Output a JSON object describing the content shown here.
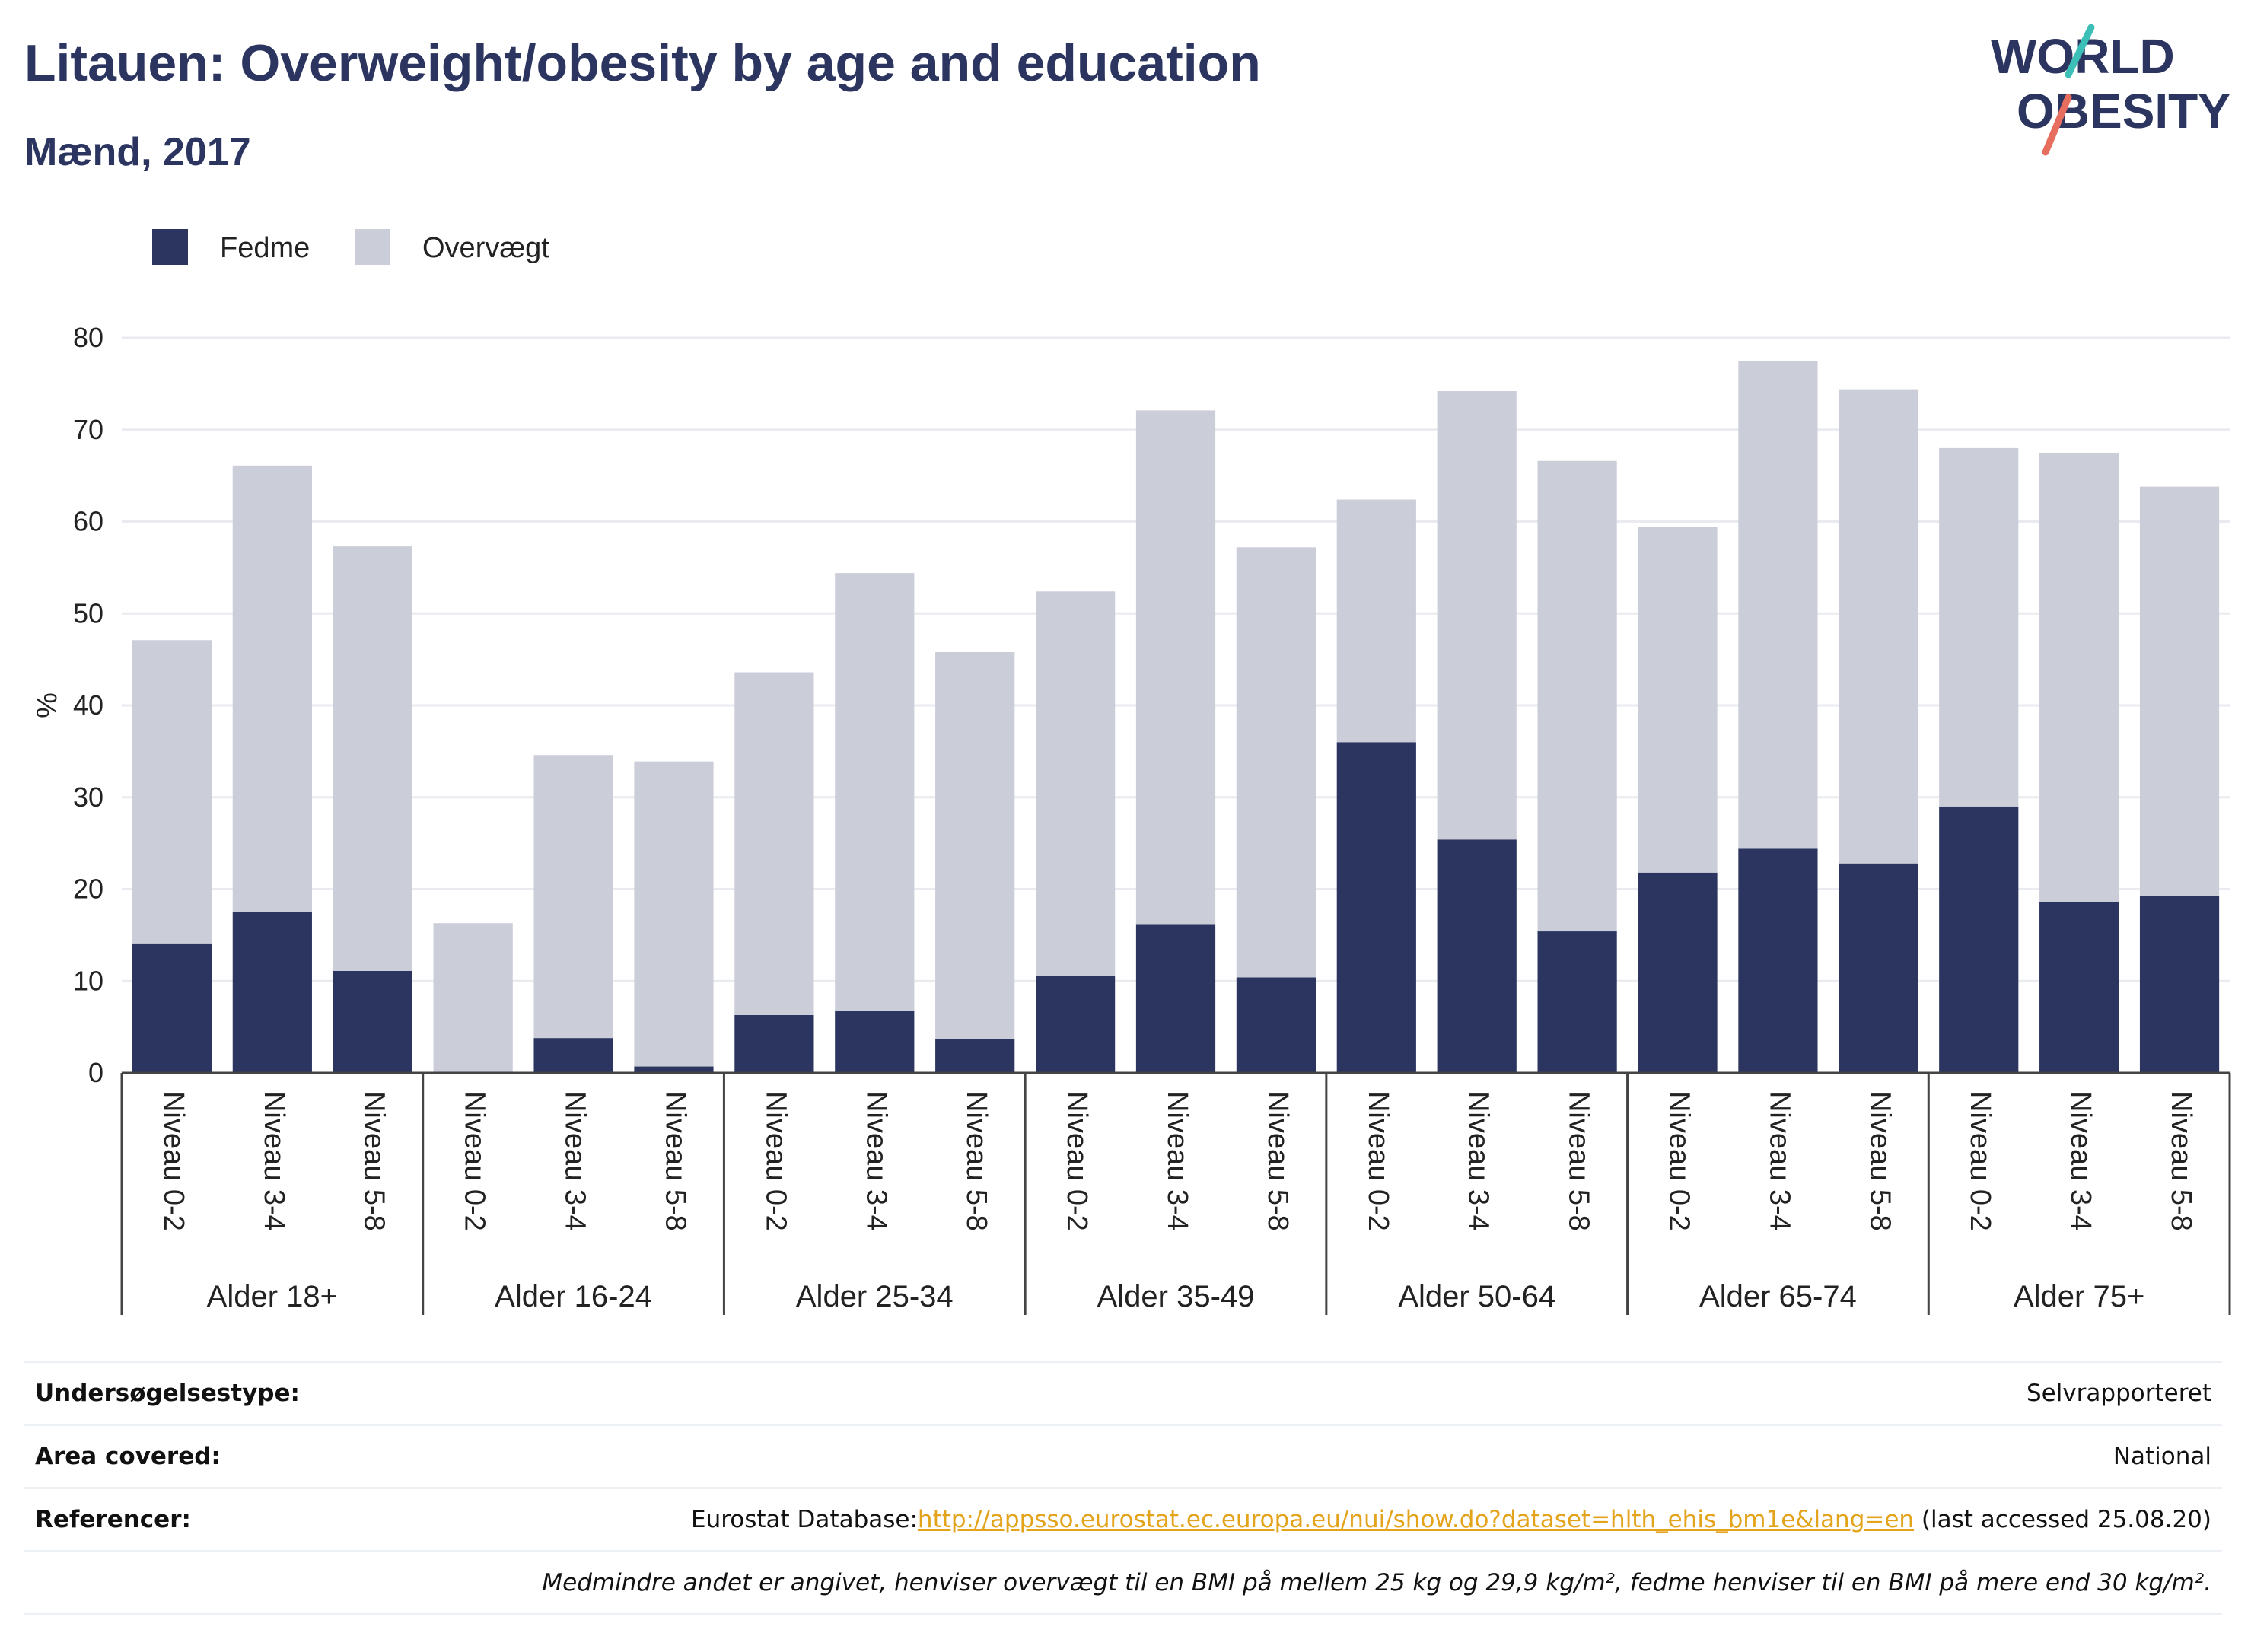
{
  "title": "Litauen: Overweight/obesity by age and education",
  "subtitle": "Mænd, 2017",
  "logo": {
    "line1": "WORLD",
    "line2": "OBESITY"
  },
  "colors": {
    "fedme": "#2b3560",
    "overvaegt": "#cbcdd9",
    "link": "#e3a31b",
    "logo_teal": "#3cbfb7",
    "logo_coral": "#e76e5e"
  },
  "chart_data": {
    "type": "bar",
    "stacked": true,
    "title": "Litauen: Overweight/obesity by age and education",
    "subtitle": "Mænd, 2017",
    "ylabel": "%",
    "ylim": [
      0,
      80
    ],
    "yticks": [
      0,
      10,
      20,
      30,
      40,
      50,
      60,
      70,
      80
    ],
    "grid": true,
    "legend_position": "top-left",
    "groups": [
      {
        "label": "Alder 18+",
        "categories": [
          "Niveau 0-2",
          "Niveau 3-4",
          "Niveau 5-8"
        ]
      },
      {
        "label": "Alder 16-24",
        "categories": [
          "Niveau 0-2",
          "Niveau 3-4",
          "Niveau 5-8"
        ]
      },
      {
        "label": "Alder 25-34",
        "categories": [
          "Niveau 0-2",
          "Niveau 3-4",
          "Niveau 5-8"
        ]
      },
      {
        "label": "Alder 35-49",
        "categories": [
          "Niveau 0-2",
          "Niveau 3-4",
          "Niveau 5-8"
        ]
      },
      {
        "label": "Alder 50-64",
        "categories": [
          "Niveau 0-2",
          "Niveau 3-4",
          "Niveau 5-8"
        ]
      },
      {
        "label": "Alder 65-74",
        "categories": [
          "Niveau 0-2",
          "Niveau 3-4",
          "Niveau 5-8"
        ]
      },
      {
        "label": "Alder 75+",
        "categories": [
          "Niveau 0-2",
          "Niveau 3-4",
          "Niveau 5-8"
        ]
      }
    ],
    "series": [
      {
        "name": "Fedme",
        "color": "#2b3560",
        "values": [
          14.1,
          17.5,
          11.1,
          0.0,
          3.8,
          0.7,
          6.3,
          6.8,
          3.7,
          10.6,
          16.2,
          10.4,
          36.0,
          25.4,
          15.4,
          21.8,
          24.4,
          22.8,
          29.0,
          18.6,
          19.3
        ]
      },
      {
        "name": "Overvægt",
        "color": "#cbcdd9",
        "values": [
          33.0,
          48.6,
          46.2,
          16.3,
          30.8,
          33.2,
          37.3,
          47.6,
          42.1,
          41.8,
          55.9,
          46.8,
          26.4,
          48.8,
          51.2,
          37.6,
          53.1,
          51.6,
          39.0,
          48.9,
          44.5
        ]
      }
    ]
  },
  "info": {
    "survey_label": "Undersøgelsestype:",
    "survey_value": "Selvrapporteret",
    "area_label": "Area covered:",
    "area_value": "National",
    "refs_label": "Referencer:",
    "refs_prefix": "Eurostat Database:",
    "refs_link": "http://appsso.eurostat.ec.europa.eu/nui/show.do?dataset=hlth_ehis_bm1e&lang=en",
    "refs_suffix": " (last accessed 25.08.20)",
    "note": "Medmindre andet er angivet, henviser overvægt til en BMI på mellem 25 kg og 29,9 kg/m², fedme henviser til en BMI på mere end 30 kg/m²."
  }
}
